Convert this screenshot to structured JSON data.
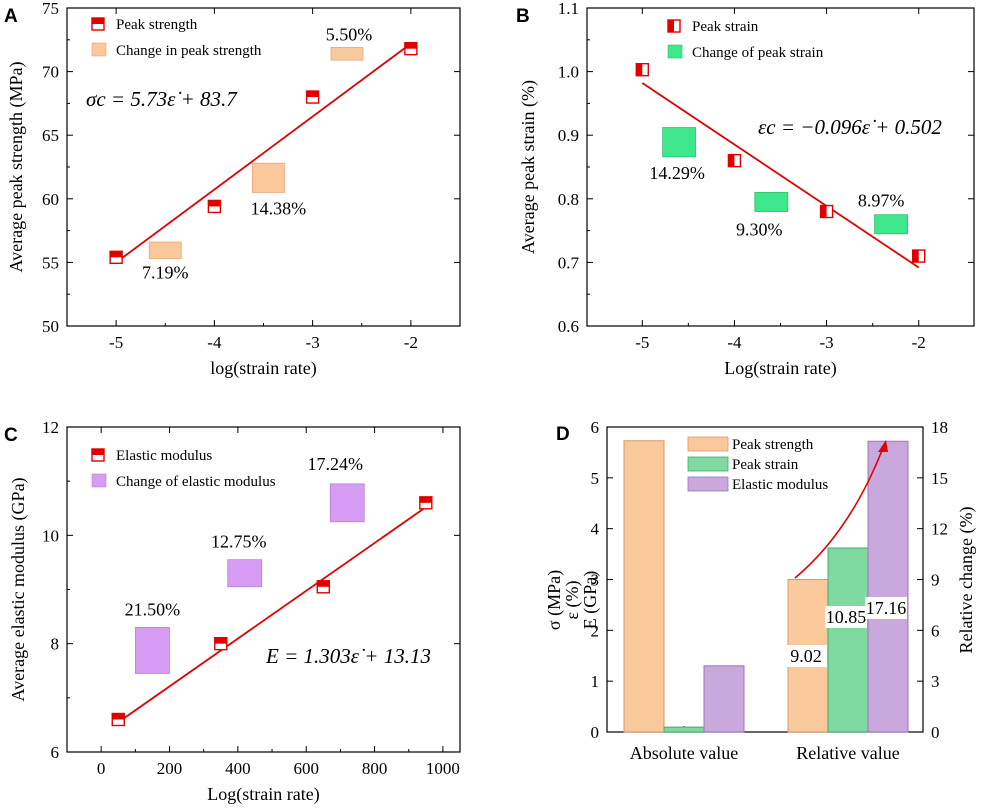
{
  "colors": {
    "strength_marker": "#e00000",
    "regression_line": "#e00000",
    "strength_change": "#f9c89b",
    "strain_change": "#3ee78c",
    "modulus_change": "#d79df4",
    "bar_strength": "#f9c89b",
    "bar_strain": "#7fd9a0",
    "bar_modulus": "#c8a8dd",
    "axis": "#000000"
  },
  "chart_data": [
    {
      "panel": "A",
      "type": "scatter",
      "xlabel": "log(strain rate)",
      "ylabel": "Average peak strength (MPa)",
      "xlim": [
        -5.5,
        -1.5
      ],
      "ylim": [
        50,
        75
      ],
      "xticks": [
        -5,
        -4,
        -3,
        -2
      ],
      "xtick_labels": [
        "-5",
        "-4",
        "-3",
        "-2"
      ],
      "yticks": [
        50,
        55,
        60,
        65,
        70,
        75
      ],
      "ytick_labels": [
        "50",
        "55",
        "60",
        "65",
        "70",
        "75"
      ],
      "legend": [
        "Peak strength",
        "Change in peak strength"
      ],
      "legend_position": "top-left",
      "points": {
        "x": [
          -5,
          -4,
          -3,
          -2
        ],
        "y": [
          55.4,
          59.4,
          68.0,
          71.8
        ]
      },
      "fit_line": {
        "x": [
          -5,
          -2
        ],
        "y": [
          55.0,
          72.2
        ]
      },
      "equation": "σc = 5.73ε̇ + 83.7",
      "change_boxes": [
        {
          "x": -4.5,
          "y_low": 55.3,
          "y_high": 56.6,
          "label": "7.19%"
        },
        {
          "x": -3.45,
          "y_low": 60.5,
          "y_high": 62.8,
          "label": "14.38%"
        },
        {
          "x": -2.65,
          "y_low": 70.9,
          "y_high": 71.9,
          "label": "5.50%"
        }
      ]
    },
    {
      "panel": "B",
      "type": "scatter",
      "xlabel": "Log(strain rate)",
      "ylabel": "Average peak strain (%)",
      "xlim": [
        -5.6,
        -1.4
      ],
      "ylim": [
        0.6,
        1.1
      ],
      "xticks": [
        -5,
        -4,
        -3,
        -2
      ],
      "xtick_labels": [
        "-5",
        "-4",
        "-3",
        "-2"
      ],
      "yticks": [
        0.6,
        0.7,
        0.8,
        0.9,
        1.0,
        1.1
      ],
      "ytick_labels": [
        "0.6",
        "0.7",
        "0.8",
        "0.9",
        "1.0",
        "1.1"
      ],
      "legend": [
        "Peak strain",
        "Change of peak strain"
      ],
      "legend_position": "top-left",
      "points": {
        "x": [
          -5,
          -4,
          -3,
          -2
        ],
        "y": [
          1.003,
          0.86,
          0.78,
          0.71
        ]
      },
      "fit_line": {
        "x": [
          -5,
          -2
        ],
        "y": [
          0.982,
          0.692
        ]
      },
      "equation": "εc = −0.096ε̇ + 0.502",
      "change_boxes": [
        {
          "x": -4.6,
          "y_low": 0.866,
          "y_high": 0.912,
          "label": "14.29%"
        },
        {
          "x": -3.6,
          "y_low": 0.78,
          "y_high": 0.81,
          "label": "9.30%"
        },
        {
          "x": -2.3,
          "y_low": 0.745,
          "y_high": 0.775,
          "label": "8.97%"
        }
      ]
    },
    {
      "panel": "C",
      "type": "scatter",
      "xlabel": "Log(strain rate)",
      "ylabel": "Average  elastic modulus (GPa)",
      "xlim": [
        -100,
        1050
      ],
      "ylim": [
        6,
        12
      ],
      "xticks": [
        0,
        200,
        400,
        600,
        800,
        1000
      ],
      "xtick_labels": [
        "0",
        "200",
        "400",
        "600",
        "800",
        "1000"
      ],
      "yticks": [
        6,
        8,
        10,
        12
      ],
      "ytick_labels": [
        "6",
        "8",
        "10",
        "12"
      ],
      "legend": [
        "Elastic modulus",
        "Change of elastic modulus"
      ],
      "legend_position": "top-left",
      "points": {
        "x": [
          50,
          350,
          650,
          950
        ],
        "y": [
          6.6,
          8.0,
          9.05,
          10.6
        ]
      },
      "fit_line": {
        "x": [
          50,
          950
        ],
        "y": [
          6.55,
          10.52
        ]
      },
      "equation": "E = 1.303ε̇ + 13.13",
      "change_boxes": [
        {
          "x": 150,
          "y_low": 7.45,
          "y_high": 8.3,
          "label": "21.50%"
        },
        {
          "x": 420,
          "y_low": 9.05,
          "y_high": 9.55,
          "label": "12.75%"
        },
        {
          "x": 720,
          "y_low": 10.25,
          "y_high": 10.95,
          "label": "17.24%"
        }
      ]
    },
    {
      "panel": "D",
      "type": "bar",
      "categories": [
        "Absolute value",
        "Relative value"
      ],
      "ylabel_left": [
        "σ (MPa)",
        "ε (%)",
        "E (GPa)"
      ],
      "ylabel_right": "Relative change (%)",
      "ylim_left": [
        0,
        6
      ],
      "ylim_right": [
        0,
        18
      ],
      "yticks_left": [
        0,
        1,
        2,
        3,
        4,
        5,
        6
      ],
      "ytick_labels_left": [
        "0",
        "1",
        "2",
        "3",
        "4",
        "5",
        "6"
      ],
      "yticks_right": [
        0,
        3,
        6,
        9,
        12,
        15,
        18
      ],
      "ytick_labels_right": [
        "0",
        "3",
        "6",
        "9",
        "12",
        "15",
        "18"
      ],
      "legend_position": "top-center",
      "series": [
        {
          "name": "Peak strength",
          "values": [
            5.73,
            3.0
          ]
        },
        {
          "name": "Peak strain",
          "values": [
            0.096,
            3.62
          ]
        },
        {
          "name": "Elastic modulus",
          "values": [
            1.303,
            5.72
          ]
        }
      ],
      "relative_labels": [
        "9.02",
        "10.85",
        "17.16"
      ]
    }
  ]
}
